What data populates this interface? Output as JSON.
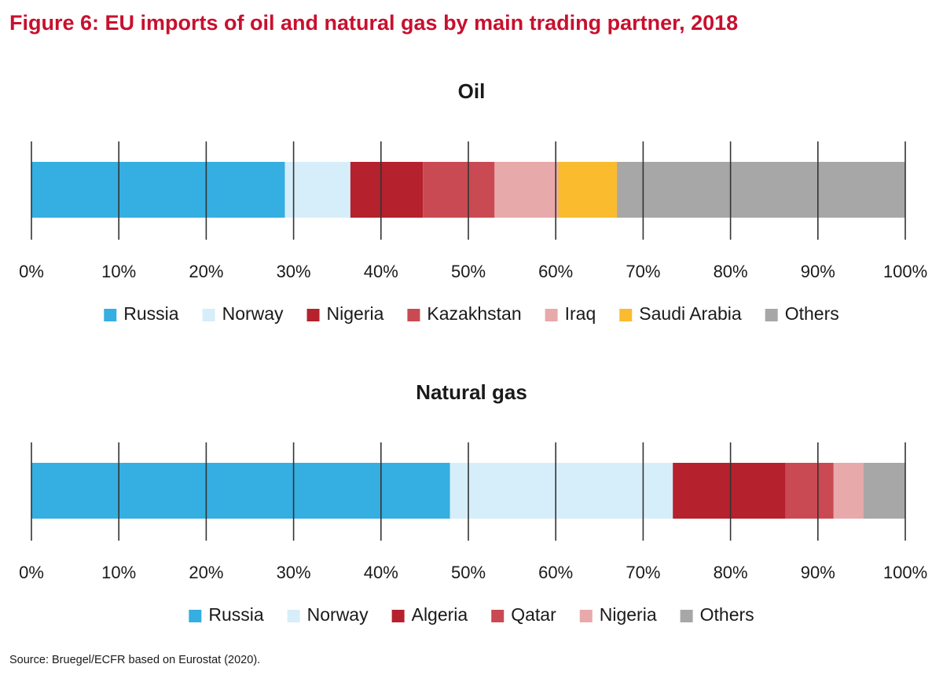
{
  "figure": {
    "title": "Figure 6: EU imports of oil and natural gas by main trading partner, 2018",
    "source": "Source: Bruegel/ECFR based on Eurostat (2020)."
  },
  "chart_data": [
    {
      "type": "bar",
      "orientation": "horizontal-stacked",
      "title": "Oil",
      "xlim": [
        0,
        100
      ],
      "x_ticks": [
        "0%",
        "10%",
        "20%",
        "30%",
        "40%",
        "50%",
        "60%",
        "70%",
        "80%",
        "90%",
        "100%"
      ],
      "grid": false,
      "legend_position": "bottom",
      "series": [
        {
          "name": "Russia",
          "value": 29.0,
          "color": "#35aee2"
        },
        {
          "name": "Norway",
          "value": 7.5,
          "color": "#d6eef9"
        },
        {
          "name": "Nigeria",
          "value": 8.3,
          "color": "#b5212d"
        },
        {
          "name": "Kazakhstan",
          "value": 8.2,
          "color": "#c94a52"
        },
        {
          "name": "Iraq",
          "value": 7.3,
          "color": "#e8a9ab"
        },
        {
          "name": "Saudi Arabia",
          "value": 6.7,
          "color": "#fbbb2f"
        },
        {
          "name": "Others",
          "value": 33.0,
          "color": "#a7a7a7"
        }
      ]
    },
    {
      "type": "bar",
      "orientation": "horizontal-stacked",
      "title": "Natural gas",
      "xlim": [
        0,
        100
      ],
      "x_ticks": [
        "0%",
        "10%",
        "20%",
        "30%",
        "40%",
        "50%",
        "60%",
        "70%",
        "80%",
        "90%",
        "100%"
      ],
      "grid": false,
      "legend_position": "bottom",
      "series": [
        {
          "name": "Russia",
          "value": 47.9,
          "color": "#35aee2"
        },
        {
          "name": "Norway",
          "value": 25.5,
          "color": "#d6eef9"
        },
        {
          "name": "Algeria",
          "value": 12.9,
          "color": "#b5212d"
        },
        {
          "name": "Qatar",
          "value": 5.5,
          "color": "#c94a52"
        },
        {
          "name": "Nigeria",
          "value": 3.4,
          "color": "#e8a9ab"
        },
        {
          "name": "Others",
          "value": 4.8,
          "color": "#a7a7a7"
        }
      ]
    }
  ]
}
